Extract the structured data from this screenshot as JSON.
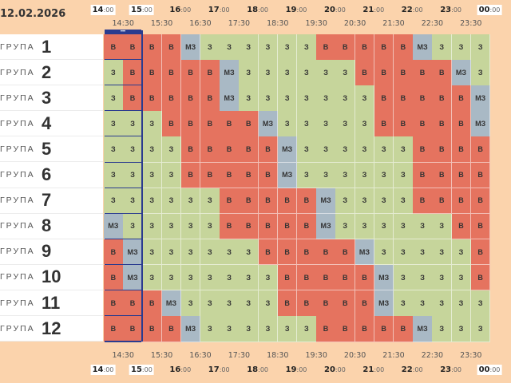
{
  "date": "12.02.2026",
  "group_word": "ГРУПА",
  "groups": [
    "1",
    "2",
    "3",
    "4",
    "5",
    "6",
    "7",
    "8",
    "9",
    "10",
    "11",
    "12"
  ],
  "hours": [
    {
      "h": "14",
      "m": ":00"
    },
    {
      "h": "15",
      "m": ":00"
    },
    {
      "h": "16",
      "m": ":00"
    },
    {
      "h": "17",
      "m": ":00"
    },
    {
      "h": "18",
      "m": ":00"
    },
    {
      "h": "19",
      "m": ":00"
    },
    {
      "h": "20",
      "m": ":00"
    },
    {
      "h": "21",
      "m": ":00"
    },
    {
      "h": "22",
      "m": ":00"
    },
    {
      "h": "23",
      "m": ":00"
    },
    {
      "h": "00",
      "m": ":00"
    }
  ],
  "half_hours": [
    "14:30",
    "15:30",
    "16:30",
    "17:30",
    "18:30",
    "19:30",
    "20:30",
    "21:30",
    "22:30",
    "23:30"
  ],
  "now_marker": "•••",
  "legend": {
    "B": "В",
    "Z": "З",
    "M": "МЗ"
  },
  "colors": {
    "B": "#e5735f",
    "Z": "#c6d59b",
    "M": "#a9b9c5",
    "now": "#2a3b8f"
  },
  "schedule": [
    [
      "B",
      "B",
      "B",
      "B",
      "M",
      "Z",
      "Z",
      "Z",
      "Z",
      "Z",
      "Z",
      "B",
      "B",
      "B",
      "B",
      "B",
      "M",
      "Z",
      "Z",
      "Z"
    ],
    [
      "Z",
      "B",
      "B",
      "B",
      "B",
      "B",
      "M",
      "Z",
      "Z",
      "Z",
      "Z",
      "Z",
      "Z",
      "B",
      "B",
      "B",
      "B",
      "B",
      "M",
      "Z"
    ],
    [
      "Z",
      "B",
      "B",
      "B",
      "B",
      "B",
      "M",
      "Z",
      "Z",
      "Z",
      "Z",
      "Z",
      "Z",
      "Z",
      "B",
      "B",
      "B",
      "B",
      "B",
      "M"
    ],
    [
      "Z",
      "Z",
      "Z",
      "B",
      "B",
      "B",
      "B",
      "B",
      "M",
      "Z",
      "Z",
      "Z",
      "Z",
      "Z",
      "B",
      "B",
      "B",
      "B",
      "B",
      "M"
    ],
    [
      "Z",
      "Z",
      "Z",
      "Z",
      "B",
      "B",
      "B",
      "B",
      "B",
      "M",
      "Z",
      "Z",
      "Z",
      "Z",
      "Z",
      "Z",
      "B",
      "B",
      "B",
      "B"
    ],
    [
      "Z",
      "Z",
      "Z",
      "Z",
      "B",
      "B",
      "B",
      "B",
      "B",
      "M",
      "Z",
      "Z",
      "Z",
      "Z",
      "Z",
      "Z",
      "B",
      "B",
      "B",
      "B"
    ],
    [
      "Z",
      "Z",
      "Z",
      "Z",
      "Z",
      "Z",
      "B",
      "B",
      "B",
      "B",
      "B",
      "M",
      "Z",
      "Z",
      "Z",
      "Z",
      "B",
      "B",
      "B",
      "B"
    ],
    [
      "M",
      "Z",
      "Z",
      "Z",
      "Z",
      "Z",
      "B",
      "B",
      "B",
      "B",
      "B",
      "M",
      "Z",
      "Z",
      "Z",
      "Z",
      "Z",
      "Z",
      "B",
      "B"
    ],
    [
      "B",
      "M",
      "Z",
      "Z",
      "Z",
      "Z",
      "Z",
      "Z",
      "B",
      "B",
      "B",
      "B",
      "B",
      "M",
      "Z",
      "Z",
      "Z",
      "Z",
      "Z",
      "B"
    ],
    [
      "B",
      "M",
      "Z",
      "Z",
      "Z",
      "Z",
      "Z",
      "Z",
      "Z",
      "B",
      "B",
      "B",
      "B",
      "B",
      "M",
      "Z",
      "Z",
      "Z",
      "Z",
      "B"
    ],
    [
      "B",
      "B",
      "B",
      "M",
      "Z",
      "Z",
      "Z",
      "Z",
      "Z",
      "B",
      "B",
      "B",
      "B",
      "B",
      "M",
      "Z",
      "Z",
      "Z",
      "Z",
      "Z"
    ],
    [
      "B",
      "B",
      "B",
      "B",
      "M",
      "Z",
      "Z",
      "Z",
      "Z",
      "Z",
      "Z",
      "B",
      "B",
      "B",
      "B",
      "B",
      "M",
      "Z",
      "Z",
      "Z"
    ]
  ]
}
